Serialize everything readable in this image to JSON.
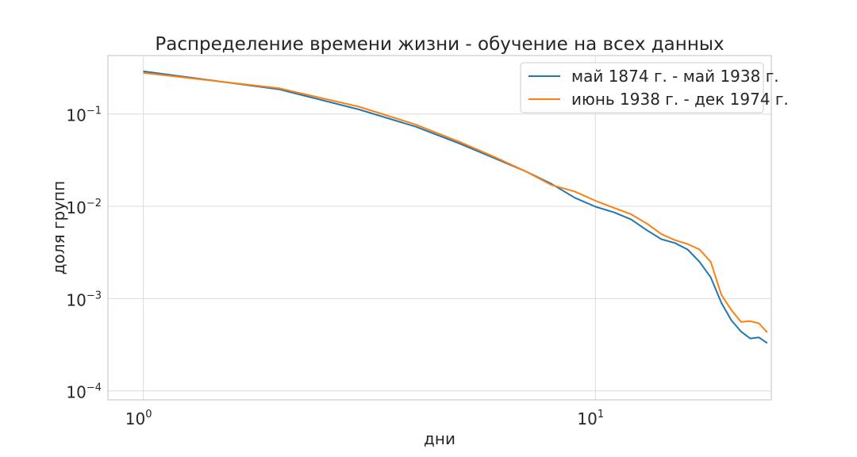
{
  "chart_data": {
    "type": "line",
    "title": "Распределение времени жизни - обучение на всех данных",
    "xlabel": "дни",
    "ylabel": "доля групп",
    "xscale": "log",
    "yscale": "log",
    "xlim": [
      0.835,
      24.5
    ],
    "ylim": [
      8e-05,
      0.43
    ],
    "xticks": [
      {
        "base": "10",
        "exp": "0",
        "value": 1
      },
      {
        "base": "10",
        "exp": "1",
        "value": 10
      }
    ],
    "yticks": [
      {
        "base": "10",
        "exp": "−1",
        "value": 0.1
      },
      {
        "base": "10",
        "exp": "−2",
        "value": 0.01
      },
      {
        "base": "10",
        "exp": "−3",
        "value": 0.001
      },
      {
        "base": "10",
        "exp": "−4",
        "value": 0.0001
      }
    ],
    "grid": true,
    "legend_position": "top-right",
    "series": [
      {
        "name": "май 1874 г. - май 1938 г.",
        "color": "#1f77b4",
        "x": [
          1,
          2,
          3,
          4,
          5,
          6,
          7,
          8,
          9,
          10,
          11,
          12,
          13,
          14,
          15,
          16,
          17,
          18,
          19,
          20,
          21,
          22,
          23,
          24
        ],
        "y": [
          0.29,
          0.185,
          0.112,
          0.073,
          0.048,
          0.033,
          0.024,
          0.0175,
          0.0124,
          0.0099,
          0.0086,
          0.0072,
          0.0055,
          0.0044,
          0.004,
          0.0034,
          0.0025,
          0.0017,
          0.0009,
          0.00058,
          0.00044,
          0.00037,
          0.00038,
          0.00033
        ]
      },
      {
        "name": "июнь 1938 г. - дек 1974 г.",
        "color": "#ff7f0e",
        "x": [
          1,
          2,
          3,
          4,
          5,
          6,
          7,
          8,
          9,
          10,
          11,
          12,
          13,
          14,
          15,
          16,
          17,
          18,
          19,
          20,
          21,
          22,
          23,
          24
        ],
        "y": [
          0.28,
          0.19,
          0.12,
          0.077,
          0.05,
          0.034,
          0.024,
          0.017,
          0.0145,
          0.0115,
          0.0096,
          0.0082,
          0.0065,
          0.005,
          0.0043,
          0.0039,
          0.0034,
          0.0025,
          0.0011,
          0.00075,
          0.00056,
          0.00057,
          0.00054,
          0.00043
        ]
      }
    ]
  }
}
